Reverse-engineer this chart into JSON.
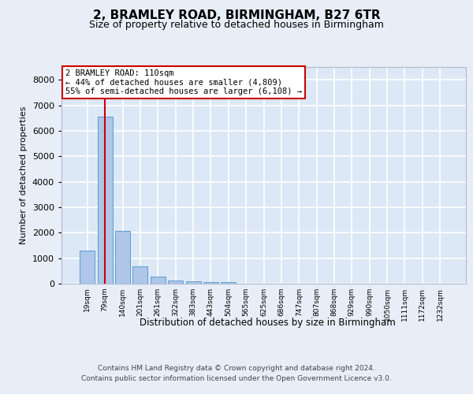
{
  "title1": "2, BRAMLEY ROAD, BIRMINGHAM, B27 6TR",
  "title2": "Size of property relative to detached houses in Birmingham",
  "xlabel": "Distribution of detached houses by size in Birmingham",
  "ylabel": "Number of detached properties",
  "bar_labels": [
    "19sqm",
    "79sqm",
    "140sqm",
    "201sqm",
    "261sqm",
    "322sqm",
    "383sqm",
    "443sqm",
    "504sqm",
    "565sqm",
    "625sqm",
    "686sqm",
    "747sqm",
    "807sqm",
    "868sqm",
    "929sqm",
    "990sqm",
    "1050sqm",
    "1111sqm",
    "1172sqm",
    "1232sqm"
  ],
  "bar_values": [
    1300,
    6550,
    2060,
    680,
    270,
    130,
    90,
    50,
    60,
    0,
    0,
    0,
    0,
    0,
    0,
    0,
    0,
    0,
    0,
    0,
    0
  ],
  "bar_color": "#aec6e8",
  "bar_edge_color": "#5a9fd4",
  "ylim": [
    0,
    8500
  ],
  "yticks": [
    0,
    1000,
    2000,
    3000,
    4000,
    5000,
    6000,
    7000,
    8000
  ],
  "property_bin_index": 1,
  "annotation_title": "2 BRAMLEY ROAD: 110sqm",
  "annotation_line1": "← 44% of detached houses are smaller (4,809)",
  "annotation_line2": "55% of semi-detached houses are larger (6,108) →",
  "vline_color": "#cc0000",
  "annotation_box_color": "#ffffff",
  "annotation_box_edge": "#cc0000",
  "footer1": "Contains HM Land Registry data © Crown copyright and database right 2024.",
  "footer2": "Contains public sector information licensed under the Open Government Licence v3.0.",
  "background_color": "#e8eef7",
  "plot_bg_color": "#dce8f5",
  "grid_color": "#ffffff"
}
